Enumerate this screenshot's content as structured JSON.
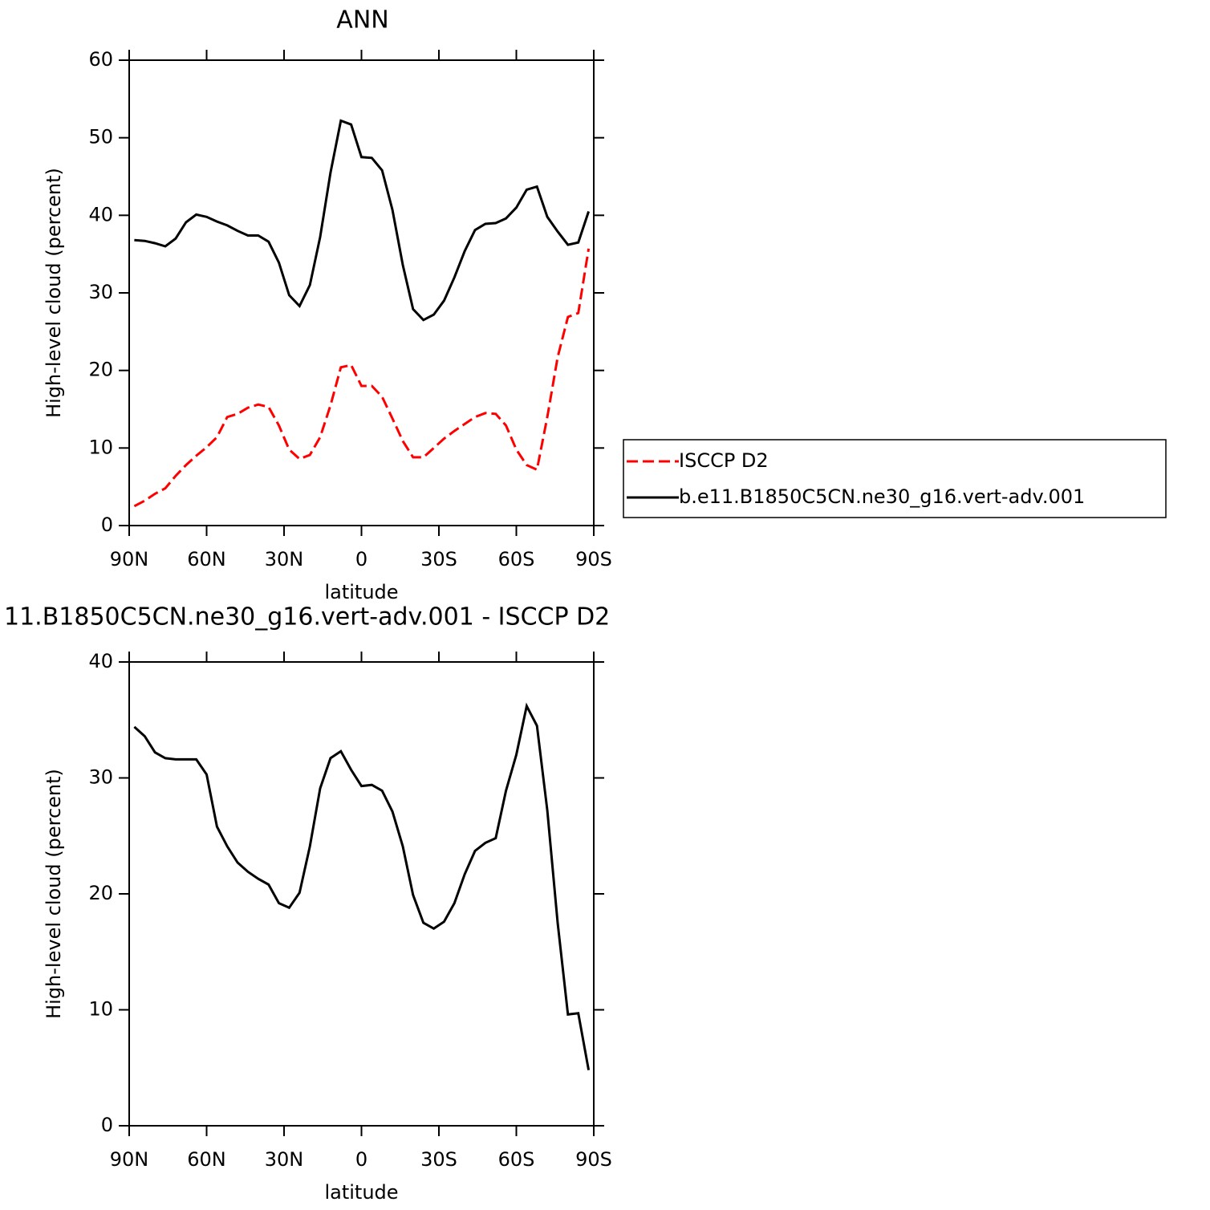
{
  "chart_data": [
    {
      "type": "line",
      "title": "ANN",
      "xlabel": "latitude",
      "ylabel": "High-level cloud (percent)",
      "x": [
        88,
        84,
        80,
        76,
        72,
        68,
        64,
        60,
        56,
        52,
        48,
        44,
        40,
        36,
        32,
        28,
        24,
        20,
        16,
        12,
        8,
        4,
        0,
        -4,
        -8,
        -12,
        -16,
        -20,
        -24,
        -28,
        -32,
        -36,
        -40,
        -44,
        -48,
        -52,
        -56,
        -60,
        -64,
        -68,
        -72,
        -76,
        -80,
        -84,
        -88
      ],
      "series": [
        {
          "name": "ISCCP D2",
          "color": "#ff0000",
          "dash": true,
          "values": [
            2.5,
            3.2,
            4.1,
            4.8,
            6.4,
            7.8,
            9.0,
            10.1,
            11.4,
            14.0,
            14.4,
            15.2,
            15.6,
            15.3,
            12.9,
            9.8,
            8.6,
            9.1,
            11.4,
            15.5,
            20.4,
            20.7,
            18.0,
            18.0,
            16.6,
            13.8,
            10.9,
            8.8,
            8.8,
            10.0,
            11.2,
            12.2,
            13.1,
            14.0,
            14.5,
            14.4,
            12.9,
            9.8,
            7.8,
            7.2,
            14.0,
            21.7,
            26.9,
            27.4,
            35.7
          ]
        },
        {
          "name": "b.e11.B1850C5CN.ne30_g16.vert-adv.001",
          "color": "#000000",
          "dash": false,
          "values": [
            36.8,
            36.7,
            36.4,
            36.0,
            37.0,
            39.1,
            40.1,
            39.8,
            39.2,
            38.7,
            38.0,
            37.4,
            37.4,
            36.6,
            33.9,
            29.7,
            28.3,
            31.0,
            37.2,
            45.5,
            52.2,
            51.7,
            47.5,
            47.4,
            45.8,
            40.7,
            33.6,
            27.9,
            26.5,
            27.2,
            29.0,
            32.0,
            35.4,
            38.1,
            38.9,
            39.0,
            39.6,
            41.0,
            43.3,
            43.7,
            39.8,
            37.9,
            36.2,
            36.5,
            40.5
          ]
        }
      ],
      "xlim": [
        90,
        -90
      ],
      "xticks": [
        {
          "value": 90,
          "label": "90N"
        },
        {
          "value": 60,
          "label": "60N"
        },
        {
          "value": 30,
          "label": "30N"
        },
        0,
        {
          "value": -30,
          "label": "30S"
        },
        {
          "value": -60,
          "label": "60S"
        },
        {
          "value": -90,
          "label": "90S"
        }
      ],
      "ylim": [
        0,
        60
      ],
      "yticks": [
        0,
        10,
        20,
        30,
        40,
        50,
        60
      ],
      "legend": "right"
    },
    {
      "type": "line",
      "title": "11.B1850C5CN.ne30_g16.vert-adv.001 - ISCCP D2",
      "xlabel": "latitude",
      "ylabel": "High-level cloud (percent)",
      "x": [
        88,
        84,
        80,
        76,
        72,
        68,
        64,
        60,
        56,
        52,
        48,
        44,
        40,
        36,
        32,
        28,
        24,
        20,
        16,
        12,
        8,
        4,
        0,
        -4,
        -8,
        -12,
        -16,
        -20,
        -24,
        -28,
        -32,
        -36,
        -40,
        -44,
        -48,
        -52,
        -56,
        -60,
        -64,
        -68,
        -72,
        -76,
        -80,
        -84,
        -88
      ],
      "values": [
        34.4,
        33.6,
        32.2,
        31.7,
        31.6,
        31.6,
        31.6,
        30.3,
        25.8,
        24.1,
        22.7,
        21.9,
        21.3,
        20.8,
        19.2,
        18.8,
        20.1,
        24.1,
        29.1,
        31.7,
        32.3,
        30.7,
        29.3,
        29.4,
        28.9,
        27.1,
        24.1,
        19.9,
        17.5,
        17.0,
        17.6,
        19.2,
        21.7,
        23.7,
        24.4,
        24.8,
        28.9,
        32.0,
        36.2,
        34.5,
        27.2,
        17.5,
        9.6,
        9.7,
        4.8
      ],
      "color": "#000000",
      "xlim": [
        90,
        -90
      ],
      "xticks": [
        {
          "value": 90,
          "label": "90N"
        },
        {
          "value": 60,
          "label": "60N"
        },
        {
          "value": 30,
          "label": "30N"
        },
        0,
        {
          "value": -30,
          "label": "30S"
        },
        {
          "value": -60,
          "label": "60S"
        },
        {
          "value": -90,
          "label": "90S"
        }
      ],
      "ylim": [
        0,
        40
      ],
      "yticks": [
        0,
        10,
        20,
        30,
        40
      ]
    }
  ]
}
